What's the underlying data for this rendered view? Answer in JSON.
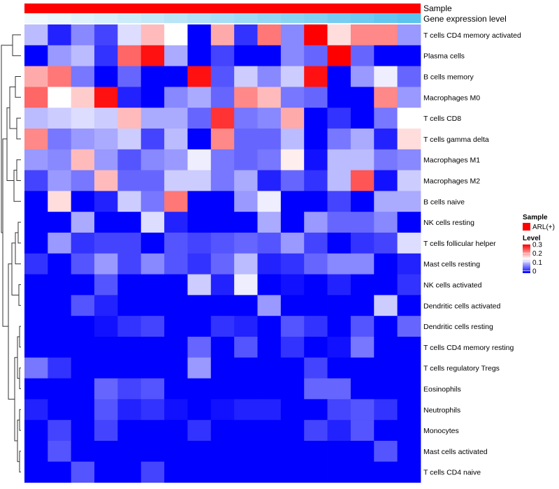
{
  "chart_data": {
    "type": "heatmap",
    "title": "",
    "annotations": {
      "sample": {
        "label": "Sample",
        "value": "ARL(+)",
        "color": "#ff0000"
      },
      "expression": {
        "label": "Gene expression level",
        "gradient": [
          "#f2f9fd",
          "#5bc3ee"
        ]
      }
    },
    "legend": {
      "sample_title": "Sample",
      "sample_entry": "ARL(+)",
      "sample_color": "#ff0000",
      "level_title": "Level",
      "level_ticks": [
        "0.3",
        "0.2",
        "0.1",
        "0"
      ],
      "level_range": [
        0,
        0.3
      ],
      "palette": {
        "low": "#0000ff",
        "mid": "#ffffff",
        "high": "#ff0000"
      }
    },
    "columns": 17,
    "rows": [
      "T cells CD4 memory activated",
      "Plasma cells",
      "B cells memory",
      "Macrophages M0",
      "T cells CD8",
      "T cells gamma delta",
      "Macrophages M1",
      "Macrophages M2",
      "B cells naive",
      "NK cells resting",
      "T cells follicular helper",
      "Mast cells resting",
      "NK cells activated",
      "Dendritic cells activated",
      "Dendritic cells resting",
      "T cells CD4 memory resting",
      "T cells regulatory  Tregs",
      "Eosinophils",
      "Neutrophils",
      "Monocytes",
      "Mast cells activated",
      "T cells CD4 naive"
    ],
    "values": [
      [
        0.11,
        0.02,
        0.08,
        0.04,
        0.13,
        0.19,
        0.15,
        0.0,
        0.2,
        0.03,
        0.23,
        0.08,
        0.3,
        0.17,
        0.22,
        0.22,
        0.09
      ],
      [
        0.0,
        0.09,
        0.11,
        0.03,
        0.24,
        0.29,
        0.1,
        0.0,
        0.04,
        0.0,
        0.0,
        0.08,
        0.06,
        0.3,
        0.06,
        0.0,
        0.0
      ],
      [
        0.2,
        0.23,
        0.07,
        0.0,
        0.06,
        0.0,
        0.0,
        0.29,
        0.05,
        0.12,
        0.08,
        0.12,
        0.29,
        0.0,
        0.09,
        0.14,
        0.06
      ],
      [
        0.24,
        0.15,
        0.18,
        0.29,
        0.02,
        0.0,
        0.08,
        0.1,
        0.06,
        0.22,
        0.19,
        0.07,
        0.06,
        0.0,
        0.0,
        0.22,
        0.09
      ],
      [
        0.11,
        0.12,
        0.13,
        0.12,
        0.19,
        0.1,
        0.1,
        0.06,
        0.27,
        0.07,
        0.08,
        0.2,
        0.0,
        0.03,
        0.0,
        0.07,
        0.15
      ],
      [
        0.22,
        0.07,
        0.09,
        0.1,
        0.12,
        0.04,
        0.11,
        0.0,
        0.22,
        0.06,
        0.06,
        0.11,
        0.0,
        0.07,
        0.1,
        0.02,
        0.17
      ],
      [
        0.09,
        0.08,
        0.19,
        0.09,
        0.05,
        0.08,
        0.09,
        0.14,
        0.07,
        0.06,
        0.07,
        0.16,
        0.01,
        0.11,
        0.11,
        0.07,
        0.08
      ],
      [
        0.04,
        0.09,
        0.07,
        0.19,
        0.06,
        0.06,
        0.12,
        0.12,
        0.07,
        0.1,
        0.02,
        0.06,
        0.03,
        0.11,
        0.25,
        0.01,
        0.12
      ],
      [
        0.0,
        0.17,
        0.0,
        0.02,
        0.12,
        0.07,
        0.23,
        0.0,
        0.0,
        0.09,
        0.14,
        0.0,
        0.0,
        0.04,
        0.0,
        0.1,
        0.1
      ],
      [
        0.0,
        0.0,
        0.1,
        0.0,
        0.0,
        0.13,
        0.02,
        0.0,
        0.0,
        0.0,
        0.1,
        0.0,
        0.09,
        0.06,
        0.06,
        0.08,
        0.0
      ],
      [
        0.0,
        0.09,
        0.03,
        0.04,
        0.04,
        0.0,
        0.05,
        0.04,
        0.05,
        0.06,
        0.05,
        0.09,
        0.04,
        0.0,
        0.03,
        0.04,
        0.13
      ],
      [
        0.03,
        0.0,
        0.05,
        0.09,
        0.04,
        0.08,
        0.05,
        0.03,
        0.06,
        0.11,
        0.02,
        0.03,
        0.06,
        0.08,
        0.08,
        0.0,
        0.02
      ],
      [
        0.0,
        0.0,
        0.0,
        0.05,
        0.0,
        0.0,
        0.0,
        0.12,
        0.02,
        0.14,
        0.0,
        0.01,
        0.0,
        0.02,
        0.0,
        0.0,
        0.03
      ],
      [
        0.0,
        0.0,
        0.05,
        0.02,
        0.0,
        0.0,
        0.0,
        0.0,
        0.0,
        0.0,
        0.09,
        0.0,
        0.0,
        0.0,
        0.0,
        0.12,
        0.0
      ],
      [
        0.0,
        0.0,
        0.0,
        0.01,
        0.03,
        0.04,
        0.0,
        0.0,
        0.03,
        0.02,
        0.0,
        0.05,
        0.03,
        0.0,
        0.05,
        0.0,
        0.06
      ],
      [
        0.0,
        0.0,
        0.0,
        0.0,
        0.0,
        0.0,
        0.0,
        0.06,
        0.0,
        0.05,
        0.0,
        0.03,
        0.0,
        0.01,
        0.07,
        0.0,
        0.0
      ],
      [
        0.07,
        0.03,
        0.0,
        0.0,
        0.0,
        0.0,
        0.0,
        0.09,
        0.0,
        0.0,
        0.0,
        0.0,
        0.04,
        0.0,
        0.0,
        0.0,
        0.0
      ],
      [
        0.0,
        0.0,
        0.0,
        0.06,
        0.04,
        0.05,
        0.0,
        0.0,
        0.0,
        0.0,
        0.0,
        0.0,
        0.06,
        0.06,
        0.0,
        0.0,
        0.0
      ],
      [
        0.02,
        0.0,
        0.0,
        0.05,
        0.02,
        0.03,
        0.01,
        0.0,
        0.01,
        0.02,
        0.02,
        0.0,
        0.0,
        0.04,
        0.05,
        0.03,
        0.0
      ],
      [
        0.0,
        0.04,
        0.0,
        0.04,
        0.0,
        0.0,
        0.0,
        0.03,
        0.0,
        0.0,
        0.0,
        0.0,
        0.04,
        0.02,
        0.05,
        0.0,
        0.0
      ],
      [
        0.0,
        0.05,
        0.0,
        0.0,
        0.0,
        0.0,
        0.0,
        0.0,
        0.0,
        0.0,
        0.0,
        0.0,
        0.0,
        0.0,
        0.0,
        0.05,
        0.0
      ],
      [
        0.0,
        0.0,
        0.05,
        0.0,
        0.0,
        0.04,
        0.0,
        0.0,
        0.0,
        0.0,
        0.0,
        0.0,
        0.0,
        0.0,
        0.0,
        0.0,
        0.0
      ]
    ]
  }
}
